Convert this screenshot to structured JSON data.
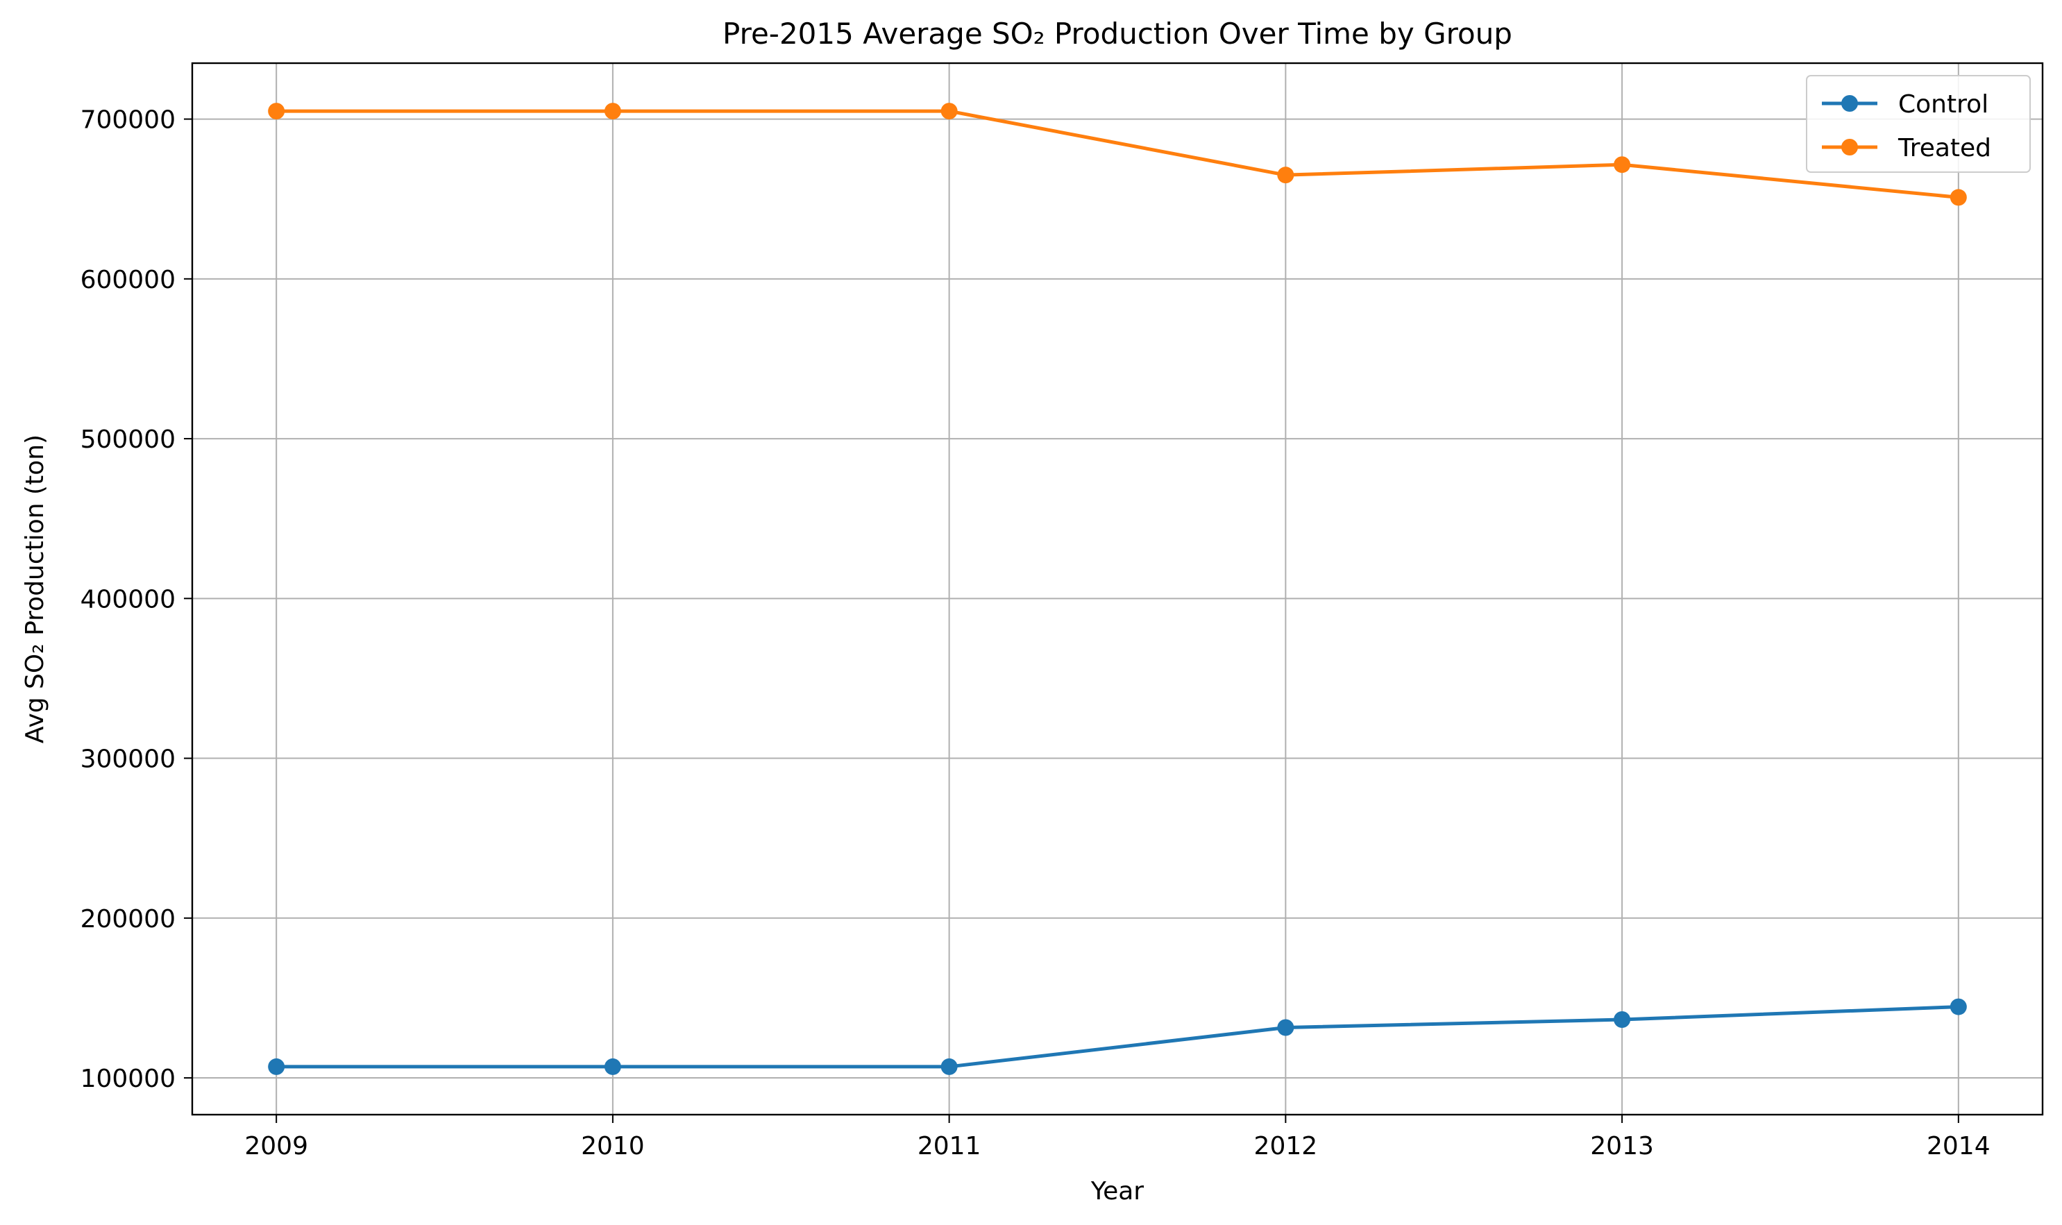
{
  "chart_data": {
    "type": "line",
    "title": "Pre-2015 Average SO₂ Production Over Time by Group",
    "xlabel": "Year",
    "ylabel": "Avg SO₂ Production (ton)",
    "x": [
      2009,
      2010,
      2011,
      2012,
      2013,
      2014
    ],
    "x_tick_labels": [
      "2009",
      "2010",
      "2011",
      "2012",
      "2013",
      "2014"
    ],
    "y_ticks": [
      100000,
      200000,
      300000,
      400000,
      500000,
      600000,
      700000
    ],
    "y_tick_labels": [
      "100000",
      "200000",
      "300000",
      "400000",
      "500000",
      "600000",
      "700000"
    ],
    "xlim": [
      2008.75,
      2014.25
    ],
    "ylim": [
      77000,
      735000
    ],
    "grid": true,
    "legend_position": "top-right",
    "series": [
      {
        "name": "Control",
        "color": "#1f77b4",
        "marker": "circle",
        "values": [
          107000,
          107000,
          107000,
          131500,
          136500,
          144500
        ]
      },
      {
        "name": "Treated",
        "color": "#ff7f0e",
        "marker": "circle",
        "values": [
          705000,
          705000,
          705000,
          665000,
          671500,
          651000
        ]
      }
    ]
  }
}
